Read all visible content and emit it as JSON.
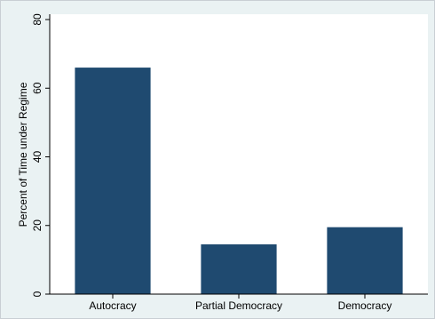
{
  "chart_data": {
    "type": "bar",
    "title": "",
    "xlabel": "",
    "ylabel": "Percent of Time under Regime",
    "categories": [
      "Autocracy",
      "Partial Democracy",
      "Democracy"
    ],
    "values": [
      66,
      14.5,
      19.5
    ],
    "ylim": [
      0,
      80
    ],
    "yticks": [
      0,
      20,
      40,
      60,
      80
    ],
    "ytick_labels": [
      "0",
      "20",
      "40",
      "60",
      "80"
    ],
    "grid": false,
    "legend": "none"
  },
  "colors": {
    "bar": "#1f4a70",
    "plot_background": "#ffffff",
    "outer_background": "#eaf2f3",
    "axis": "#000000"
  }
}
